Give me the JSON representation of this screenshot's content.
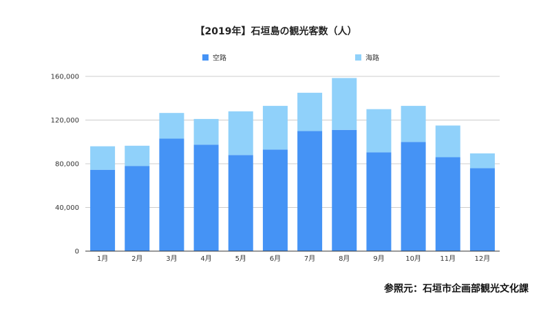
{
  "chart_data": {
    "type": "bar",
    "stacked": true,
    "title": "【2019年】石垣島の観光客数（人）",
    "categories": [
      "1月",
      "2月",
      "3月",
      "4月",
      "5月",
      "6月",
      "7月",
      "8月",
      "9月",
      "10月",
      "11月",
      "12月"
    ],
    "series": [
      {
        "name": "空路",
        "color": "#4593F5",
        "values": [
          74500,
          78000,
          103000,
          97500,
          88000,
          93000,
          110000,
          111000,
          90500,
          100000,
          86000,
          76000
        ]
      },
      {
        "name": "海路",
        "color": "#90D1FA",
        "values": [
          21500,
          18500,
          23500,
          23500,
          40000,
          40000,
          35000,
          47500,
          39500,
          33000,
          29000,
          13500
        ]
      }
    ],
    "y_ticks": [
      "0",
      "40,000",
      "80,000",
      "120,000",
      "160,000"
    ],
    "ylim": [
      0,
      160000
    ],
    "grid": true,
    "legend_position": "top"
  },
  "source_note": "参照元：石垣市企画部観光文化課"
}
